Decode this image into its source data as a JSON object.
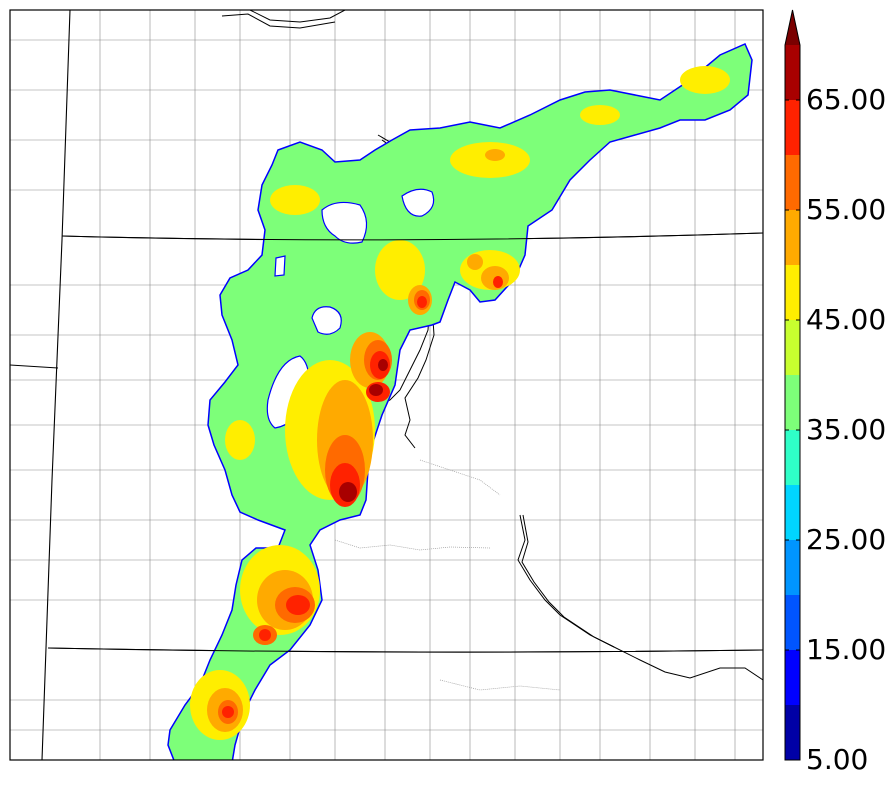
{
  "colorbar": {
    "levels": [
      {
        "from": 5,
        "to": 10,
        "color": "#0000a6"
      },
      {
        "from": 10,
        "to": 15,
        "color": "#0000ff"
      },
      {
        "from": 15,
        "to": 20,
        "color": "#0055ff"
      },
      {
        "from": 20,
        "to": 25,
        "color": "#0095ff"
      },
      {
        "from": 25,
        "to": 30,
        "color": "#00d5ff"
      },
      {
        "from": 30,
        "to": 35,
        "color": "#2fffc8"
      },
      {
        "from": 35,
        "to": 40,
        "color": "#7dff79"
      },
      {
        "from": 40,
        "to": 45,
        "color": "#c8ff2f"
      },
      {
        "from": 45,
        "to": 50,
        "color": "#ffee00"
      },
      {
        "from": 50,
        "to": 55,
        "color": "#ffaa00"
      },
      {
        "from": 55,
        "to": 60,
        "color": "#ff6a00"
      },
      {
        "from": 60,
        "to": 65,
        "color": "#ff2200"
      },
      {
        "from": 65,
        "to": 70,
        "color": "#a80000"
      }
    ],
    "extend_color": "#7a0000",
    "tick_labels": [
      "5.00",
      "15.00",
      "25.00",
      "35.00",
      "45.00",
      "55.00",
      "65.00"
    ]
  }
}
